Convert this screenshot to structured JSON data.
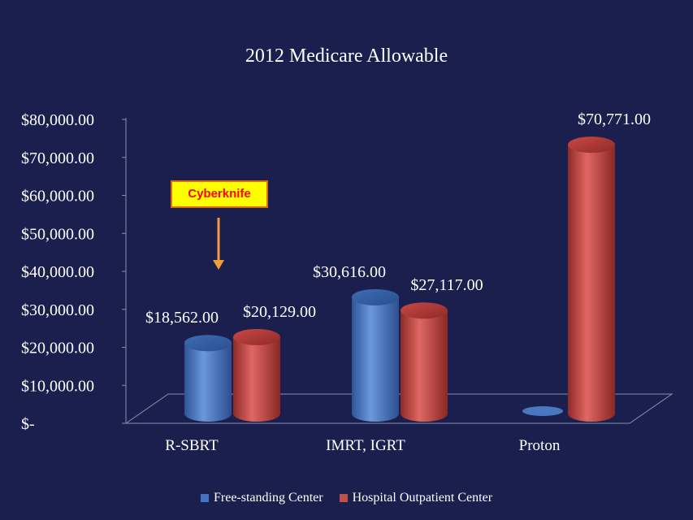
{
  "chart_data": {
    "type": "bar",
    "title": "2012 Medicare Allowable",
    "categories": [
      "R-SBRT",
      "IMRT, IGRT",
      "Proton"
    ],
    "series": [
      {
        "name": "Free-standing Center",
        "color": "#4472c4",
        "values": [
          18562,
          30616,
          0
        ],
        "labels": [
          "$18,562.00",
          "$30,616.00",
          ""
        ]
      },
      {
        "name": "Hospital Outpatient Center",
        "color": "#c0504d",
        "values": [
          20129,
          27117,
          70771
        ],
        "labels": [
          "$20,129.00",
          "$27,117.00",
          "$70,771.00"
        ]
      }
    ],
    "y_ticks": [
      "$-",
      "$10,000.00",
      "$20,000.00",
      "$30,000.00",
      "$40,000.00",
      "$50,000.00",
      "$60,000.00",
      "$70,000.00",
      "$80,000.00"
    ],
    "ylim": [
      0,
      80000
    ],
    "legend_position": "bottom",
    "grid": false,
    "style": "3d-cylinder"
  },
  "annotation": {
    "text": "Cyberknife"
  }
}
